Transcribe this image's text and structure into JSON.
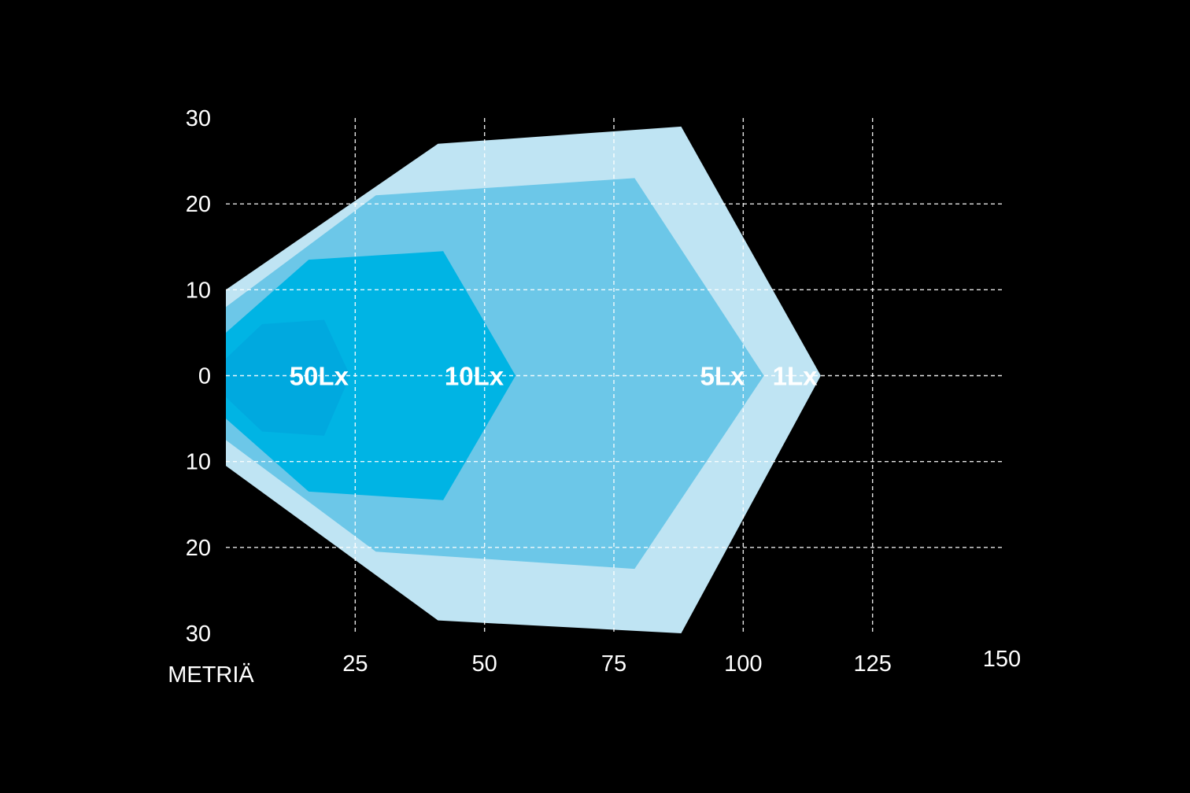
{
  "chart_data": {
    "type": "area",
    "title": "",
    "xlabel": "METRIÄ",
    "ylabel": "",
    "xlim": [
      0,
      150
    ],
    "ylim": [
      -30,
      30
    ],
    "grid": true,
    "x_ticks": [
      {
        "value": 25,
        "label": "25"
      },
      {
        "value": 50,
        "label": "50"
      },
      {
        "value": 75,
        "label": "75"
      },
      {
        "value": 100,
        "label": "100"
      },
      {
        "value": 125,
        "label": "125"
      },
      {
        "value": 150,
        "label": "150"
      }
    ],
    "y_ticks": [
      {
        "value": 30,
        "label": "30"
      },
      {
        "value": 20,
        "label": "20"
      },
      {
        "value": 10,
        "label": "10"
      },
      {
        "value": 0,
        "label": "0"
      },
      {
        "value": -10,
        "label": "10"
      },
      {
        "value": -20,
        "label": "20"
      },
      {
        "value": -30,
        "label": "30"
      }
    ],
    "series": [
      {
        "name": "1Lx",
        "color": "#bfe4f3",
        "points": [
          [
            0,
            10
          ],
          [
            41,
            27
          ],
          [
            88,
            29
          ],
          [
            115,
            0
          ],
          [
            88,
            -30
          ],
          [
            41,
            -28.5
          ],
          [
            0,
            -10.5
          ]
        ]
      },
      {
        "name": "5Lx",
        "color": "#6cc7e8",
        "points": [
          [
            0,
            8
          ],
          [
            29,
            21
          ],
          [
            79,
            23
          ],
          [
            104,
            0
          ],
          [
            79,
            -22.5
          ],
          [
            29,
            -20.5
          ],
          [
            0,
            -7.5
          ]
        ]
      },
      {
        "name": "10Lx",
        "color": "#00b4e4",
        "points": [
          [
            0,
            5
          ],
          [
            16,
            13.5
          ],
          [
            42,
            14.5
          ],
          [
            56,
            0
          ],
          [
            42,
            -14.5
          ],
          [
            16,
            -13.5
          ],
          [
            0,
            -5
          ]
        ]
      },
      {
        "name": "50Lx",
        "color": "#00a9df",
        "points": [
          [
            0,
            2
          ],
          [
            7,
            6
          ],
          [
            19,
            6.5
          ],
          [
            24,
            0
          ],
          [
            19,
            -7
          ],
          [
            7,
            -6.5
          ],
          [
            0,
            -2.5
          ]
        ]
      }
    ],
    "labels": [
      {
        "text": "50Lx",
        "x": 18,
        "y": 0
      },
      {
        "text": "10Lx",
        "x": 48,
        "y": 0
      },
      {
        "text": "5Lx",
        "x": 96,
        "y": 0
      },
      {
        "text": "1Lx",
        "x": 110,
        "y": 0
      }
    ]
  }
}
